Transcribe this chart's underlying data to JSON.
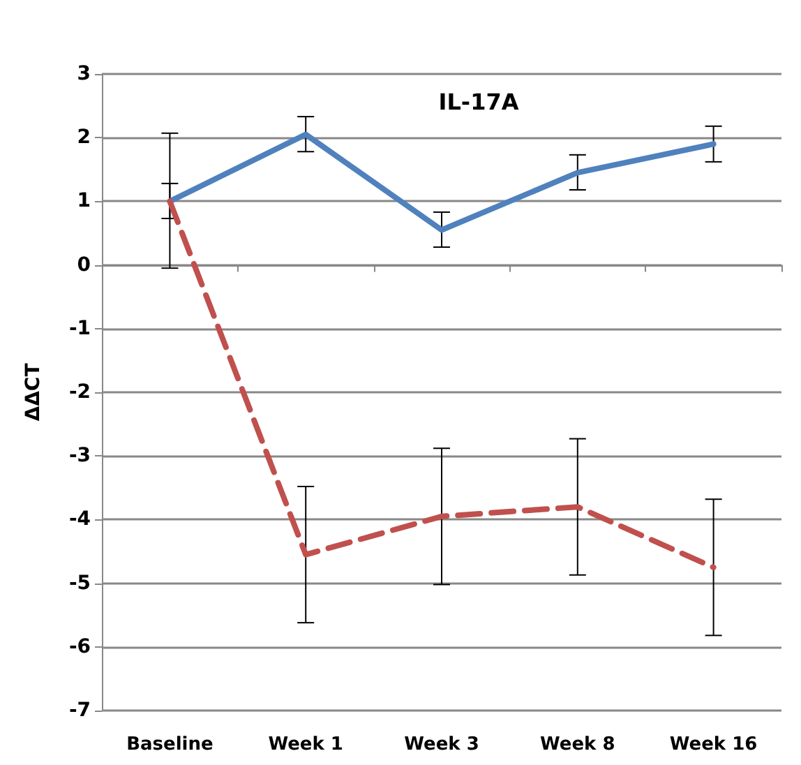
{
  "chart_data": {
    "type": "line",
    "title": "IL-17A",
    "ylabel": "ΔΔCT",
    "categories": [
      "Baseline",
      "Week 1",
      "Week 3",
      "Week 8",
      "Week 16"
    ],
    "series": [
      {
        "color": "#4f81bd",
        "line_style": "solid",
        "values": [
          1.0,
          2.05,
          0.55,
          1.45,
          1.9
        ],
        "errors": [
          [
            0.73,
            1.28
          ],
          [
            1.78,
            2.33
          ],
          [
            0.28,
            0.83
          ],
          [
            1.18,
            1.73
          ],
          [
            1.62,
            2.18
          ]
        ]
      },
      {
        "color": "#c0504d",
        "line_style": "dashed",
        "values": [
          1.0,
          -4.55,
          -3.95,
          -3.8,
          -4.75
        ],
        "errors": [
          [
            -0.05,
            2.07
          ],
          [
            -5.62,
            -3.48
          ],
          [
            -5.02,
            -2.88
          ],
          [
            -4.87,
            -2.73
          ],
          [
            -5.82,
            -3.68
          ]
        ]
      }
    ],
    "ylim": [
      -7,
      3
    ],
    "yticks": [
      -7,
      -6,
      -5,
      -4,
      -3,
      -2,
      -1,
      0,
      1,
      2,
      3
    ],
    "grid": "y",
    "marker": "none"
  }
}
